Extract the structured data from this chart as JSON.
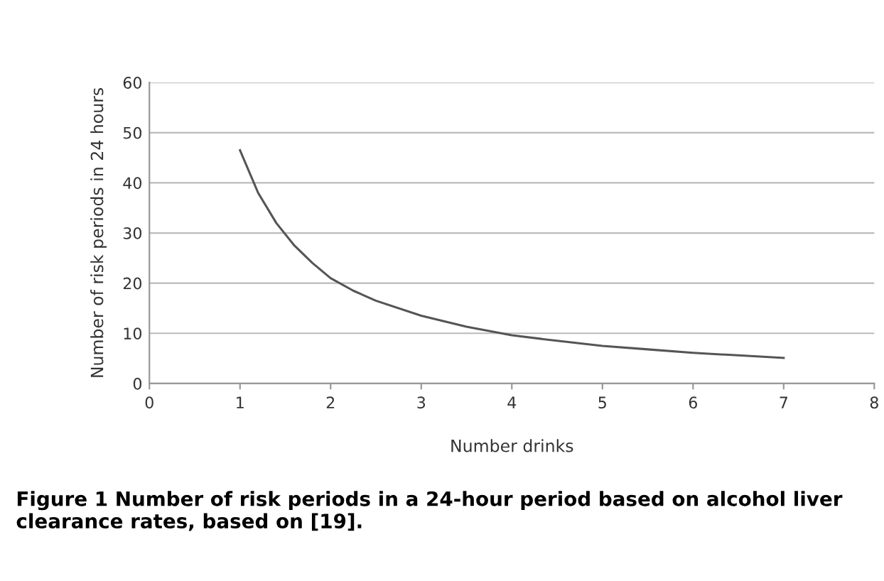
{
  "chart_data": {
    "type": "line",
    "xlabel": "Number drinks",
    "ylabel": "Number of risk periods in 24 hours",
    "x": [
      1,
      1.2,
      1.4,
      1.6,
      1.8,
      2,
      2.25,
      2.5,
      3,
      3.5,
      4,
      4.5,
      5,
      5.5,
      6,
      6.5,
      7
    ],
    "series": [
      {
        "color": "#555555",
        "values": [
          46.5,
          38,
          32,
          27.5,
          24,
          21,
          18.5,
          16.5,
          13.5,
          11.3,
          9.6,
          8.5,
          7.5,
          6.8,
          6.1,
          5.6,
          5.1
        ]
      }
    ],
    "xlim": [
      0,
      8
    ],
    "xticks": [
      0,
      1,
      2,
      3,
      4,
      5,
      6,
      7,
      8
    ],
    "ylim": [
      0,
      60
    ],
    "yticks": [
      0,
      10,
      20,
      30,
      40,
      50,
      60
    ],
    "grid": "y",
    "marker": "none",
    "line_style": "solid",
    "annotations": [
      "Figure 1 Number of risk periods in a 24-hour period based on alcohol liver clearance rates, based on [19]."
    ]
  }
}
